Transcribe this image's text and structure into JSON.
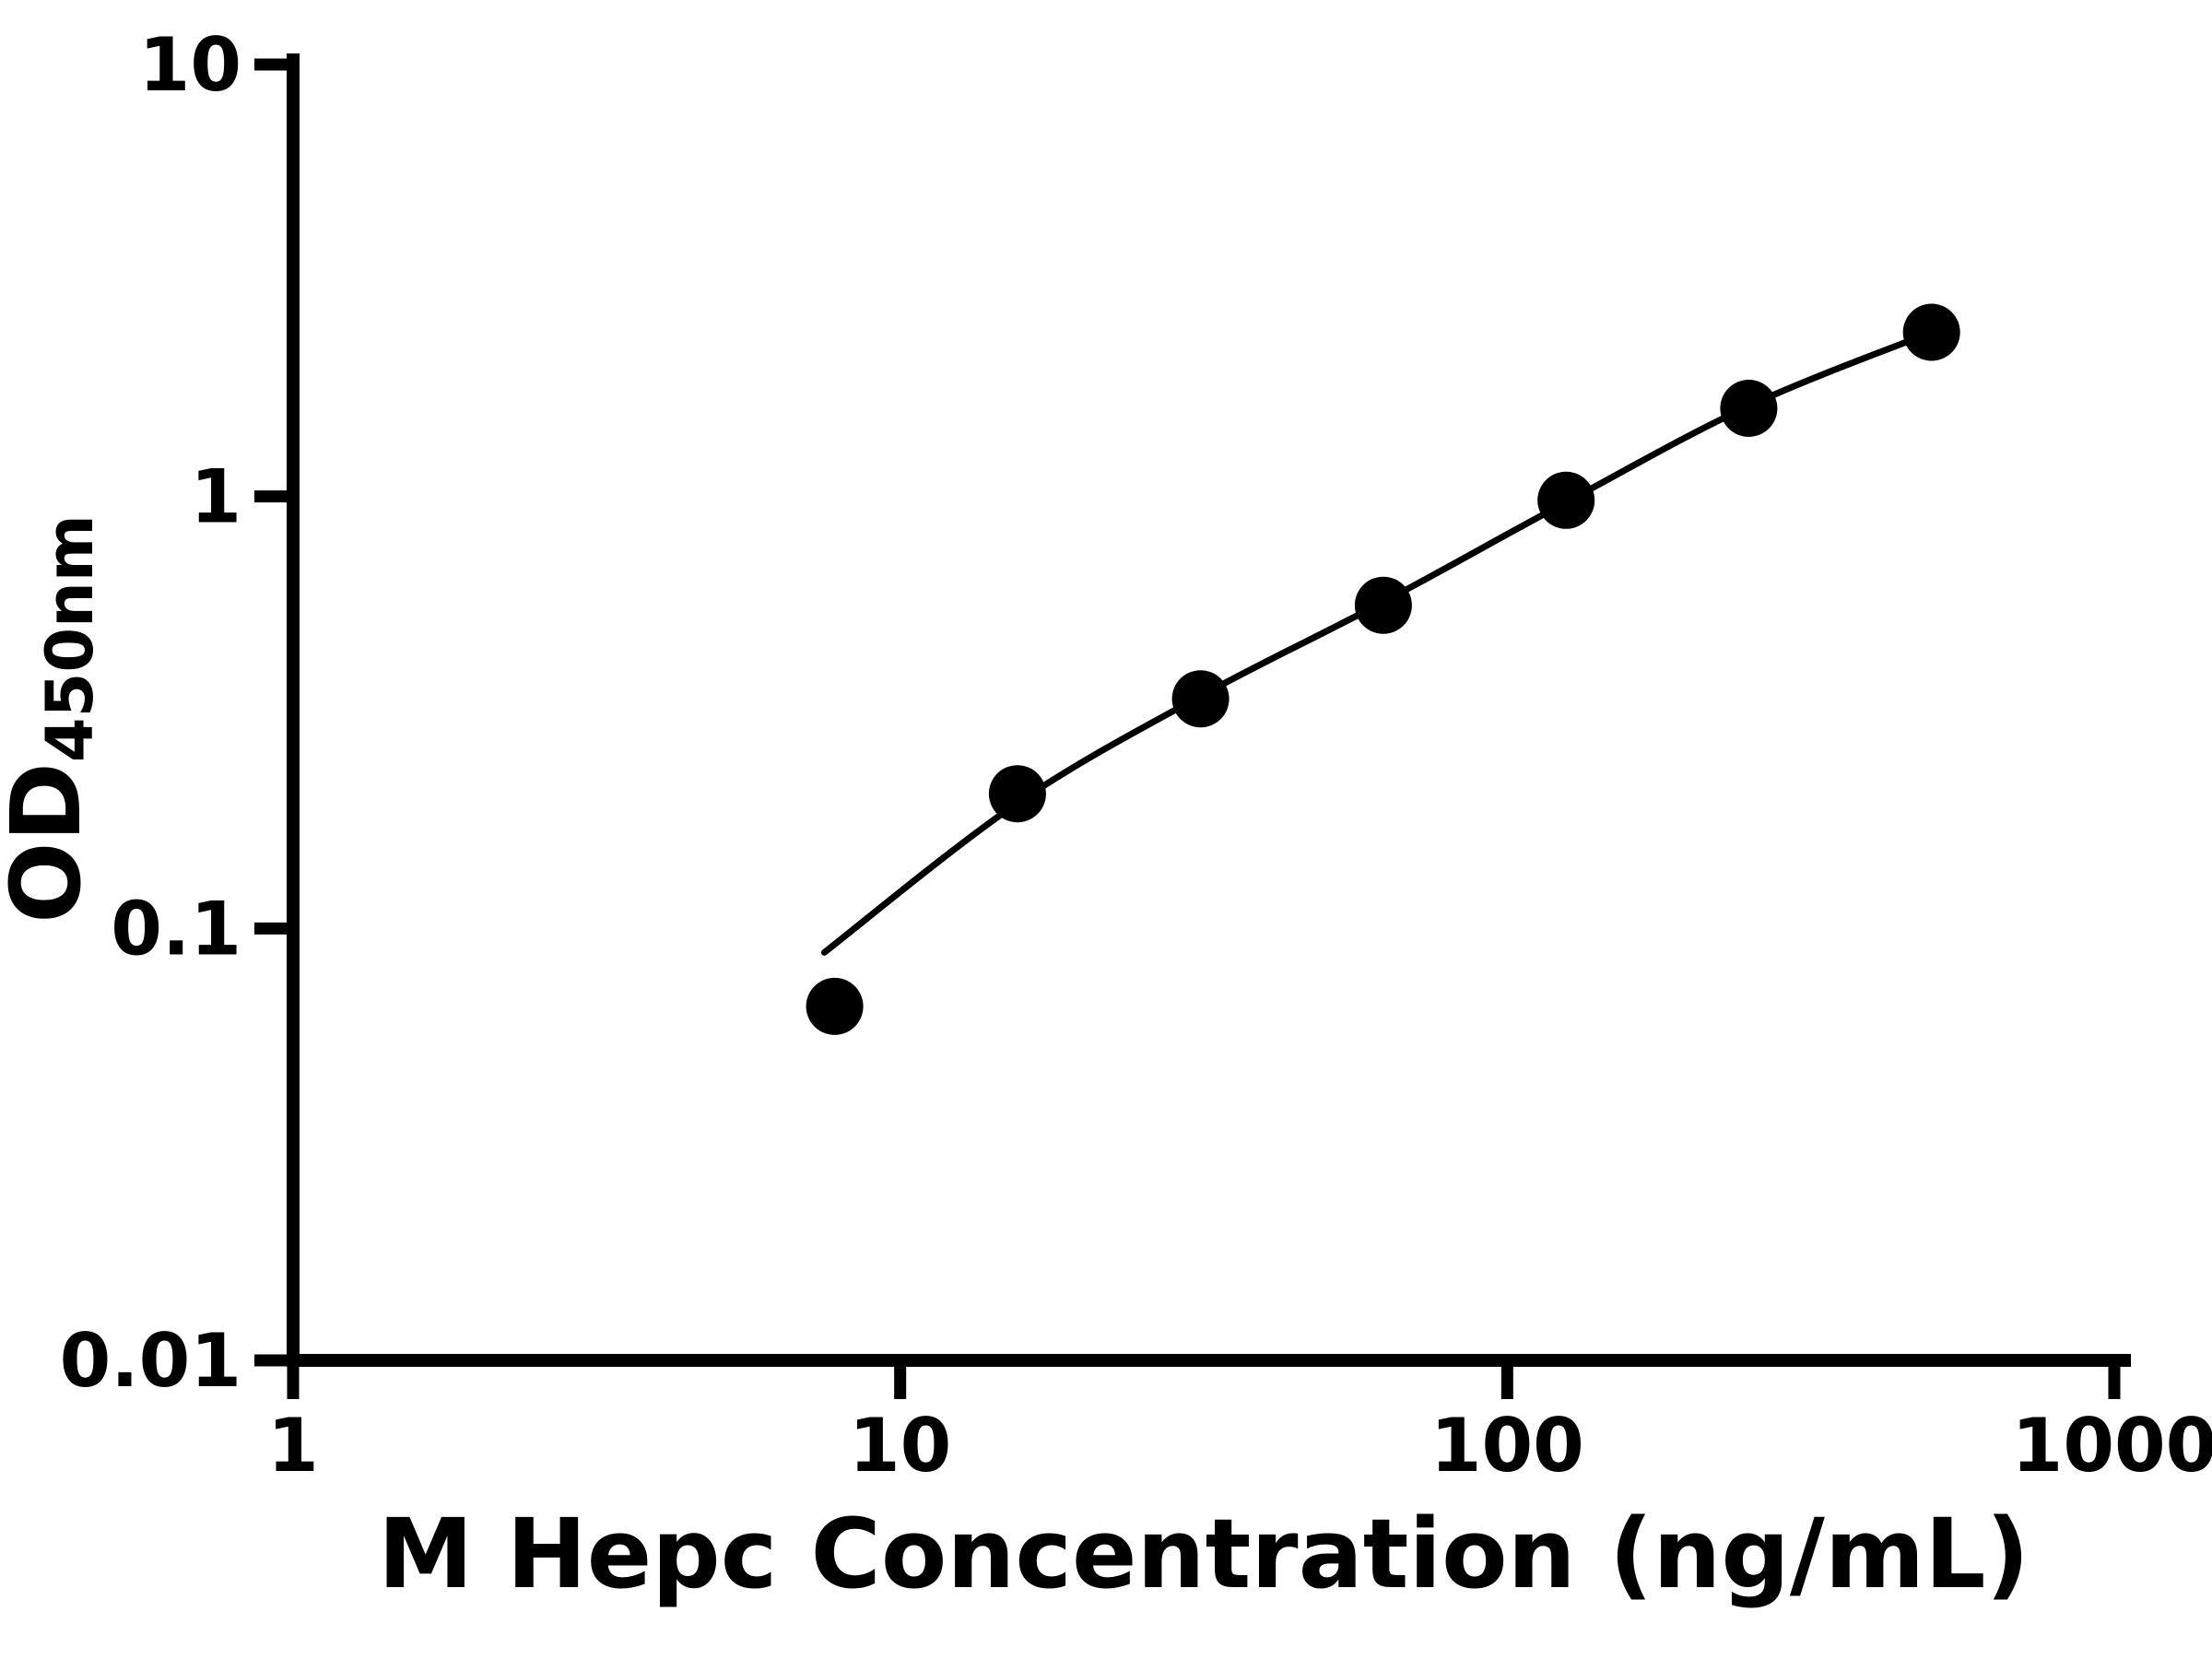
{
  "chart_data": {
    "type": "scatter",
    "title": "",
    "xlabel": "M Hepc Concentration (ng/mL)",
    "ylabel_main": "OD",
    "ylabel_sub": "450nm",
    "xscale": "log",
    "yscale": "log",
    "xlim": [
      1,
      1000
    ],
    "ylim": [
      0.01,
      10
    ],
    "x_ticks": [
      1,
      10,
      100,
      1000
    ],
    "x_tick_labels": [
      "1",
      "10",
      "100",
      "1000"
    ],
    "y_ticks": [
      10,
      1,
      0.1,
      0.01
    ],
    "y_tick_labels": [
      "10",
      "1",
      "0.1",
      "0.01"
    ],
    "grid": false,
    "legend": "none",
    "points": {
      "x": [
        7.8,
        15.6,
        31.25,
        62.5,
        125,
        250,
        500
      ],
      "y": [
        0.066,
        0.205,
        0.34,
        0.56,
        0.98,
        1.6,
        2.4
      ]
    },
    "fit_curve": {
      "x": [
        7.5,
        15.6,
        31.25,
        62.5,
        125,
        250,
        500
      ],
      "y": [
        0.088,
        0.195,
        0.345,
        0.57,
        0.97,
        1.62,
        2.4
      ]
    },
    "marker_color": "#000000",
    "line_color": "#000000",
    "axis_color": "#000000",
    "background_color": "#ffffff"
  }
}
